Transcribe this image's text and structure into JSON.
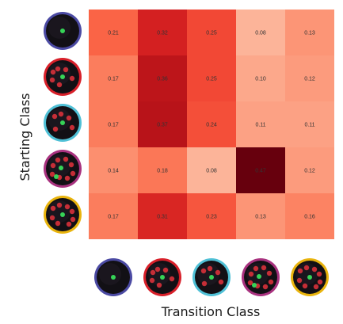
{
  "chart_data": {
    "type": "heatmap",
    "xlabel": "Transition Class",
    "ylabel": "Starting Class",
    "rows": [
      "class-1",
      "class-2",
      "class-3",
      "class-4",
      "class-5"
    ],
    "cols": [
      "class-1",
      "class-2",
      "class-3",
      "class-4",
      "class-5"
    ],
    "values": [
      [
        0.21,
        0.32,
        0.25,
        0.08,
        0.13
      ],
      [
        0.17,
        0.36,
        0.25,
        0.1,
        0.12
      ],
      [
        0.17,
        0.37,
        0.24,
        0.11,
        0.11
      ],
      [
        0.14,
        0.18,
        0.08,
        0.47,
        0.12
      ],
      [
        0.17,
        0.31,
        0.23,
        0.13,
        0.16
      ]
    ],
    "labels": [
      [
        "0.21",
        "0.32",
        "0.25",
        "0.08",
        "0.13"
      ],
      [
        "0.17",
        "0.36",
        "0.25",
        "0.10",
        "0.12"
      ],
      [
        "0.17",
        "0.37",
        "0.24",
        "0.11",
        "0.11"
      ],
      [
        "0.14",
        "0.18",
        "0.08",
        "0.47",
        "0.12"
      ],
      [
        "0.17",
        "0.31",
        "0.23",
        "0.13",
        "0.16"
      ]
    ],
    "colormap": "Reds",
    "vmin": 0.0,
    "vmax": 0.47,
    "class_ring_colors": [
      "#4b4aa3",
      "#d8202a",
      "#4fc0d6",
      "#a8327f",
      "#e9b40d"
    ],
    "class_icons": [
      {
        "red_dots": 0,
        "green_dots": 1
      },
      {
        "red_dots": 6,
        "green_dots": 1
      },
      {
        "red_dots": 5,
        "green_dots": 1
      },
      {
        "red_dots": 8,
        "green_dots": 2
      },
      {
        "red_dots": 8,
        "green_dots": 1
      }
    ]
  }
}
